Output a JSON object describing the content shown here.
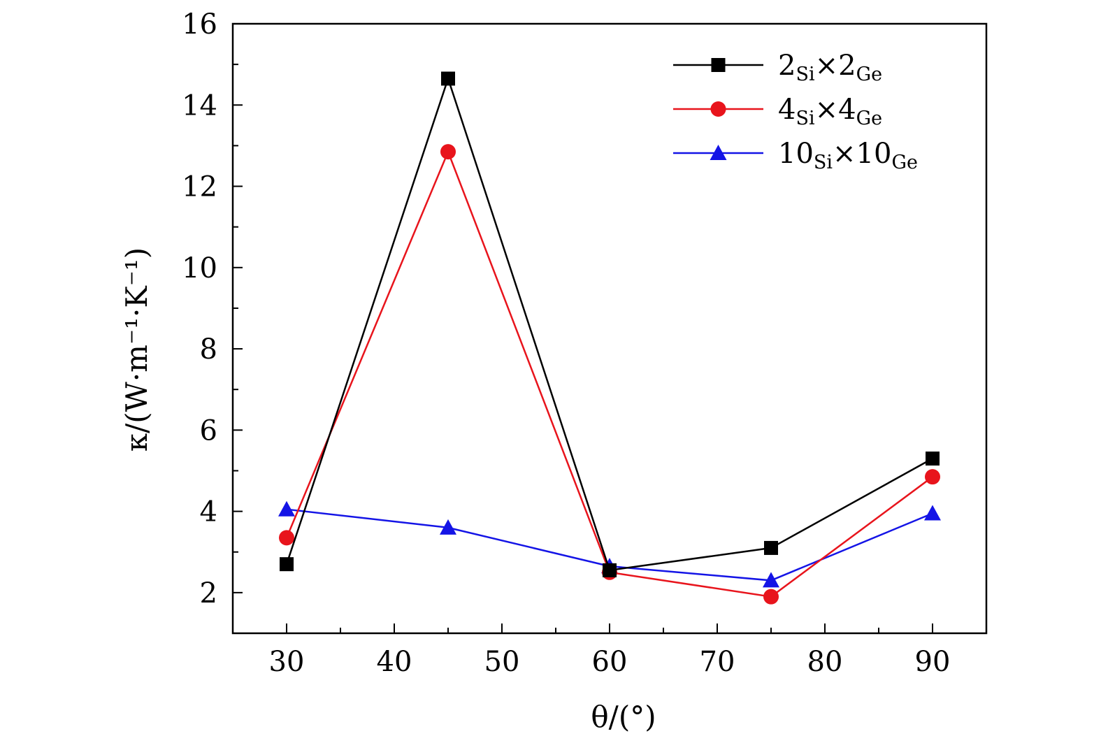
{
  "chart_data": {
    "type": "line",
    "xlabel": "θ/(°)",
    "ylabel": "κ/(W·m⁻¹·K⁻¹)",
    "xlim": [
      25,
      95
    ],
    "ylim": [
      1,
      16
    ],
    "x_ticks": [
      30,
      40,
      50,
      60,
      70,
      80,
      90
    ],
    "y_ticks": [
      2,
      4,
      6,
      8,
      10,
      12,
      14,
      16
    ],
    "grid": false,
    "legend_position": "top-right",
    "x": [
      30,
      45,
      60,
      75,
      90
    ],
    "series": [
      {
        "name": "2Si×2Ge",
        "label_parts": [
          "2",
          "Si",
          "×2",
          "Ge"
        ],
        "color": "#000000",
        "marker": "square",
        "values": [
          2.7,
          14.65,
          2.55,
          3.1,
          5.3
        ]
      },
      {
        "name": "4Si×4Ge",
        "label_parts": [
          "4",
          "Si",
          "×4",
          "Ge"
        ],
        "color": "#e8141c",
        "marker": "circle",
        "values": [
          3.35,
          12.85,
          2.5,
          1.9,
          4.85
        ]
      },
      {
        "name": "10Si×10Ge",
        "label_parts": [
          "10",
          "Si",
          "×10",
          "Ge"
        ],
        "color": "#1414e6",
        "marker": "triangle",
        "values": [
          4.05,
          3.6,
          2.65,
          2.3,
          3.95
        ]
      }
    ]
  }
}
